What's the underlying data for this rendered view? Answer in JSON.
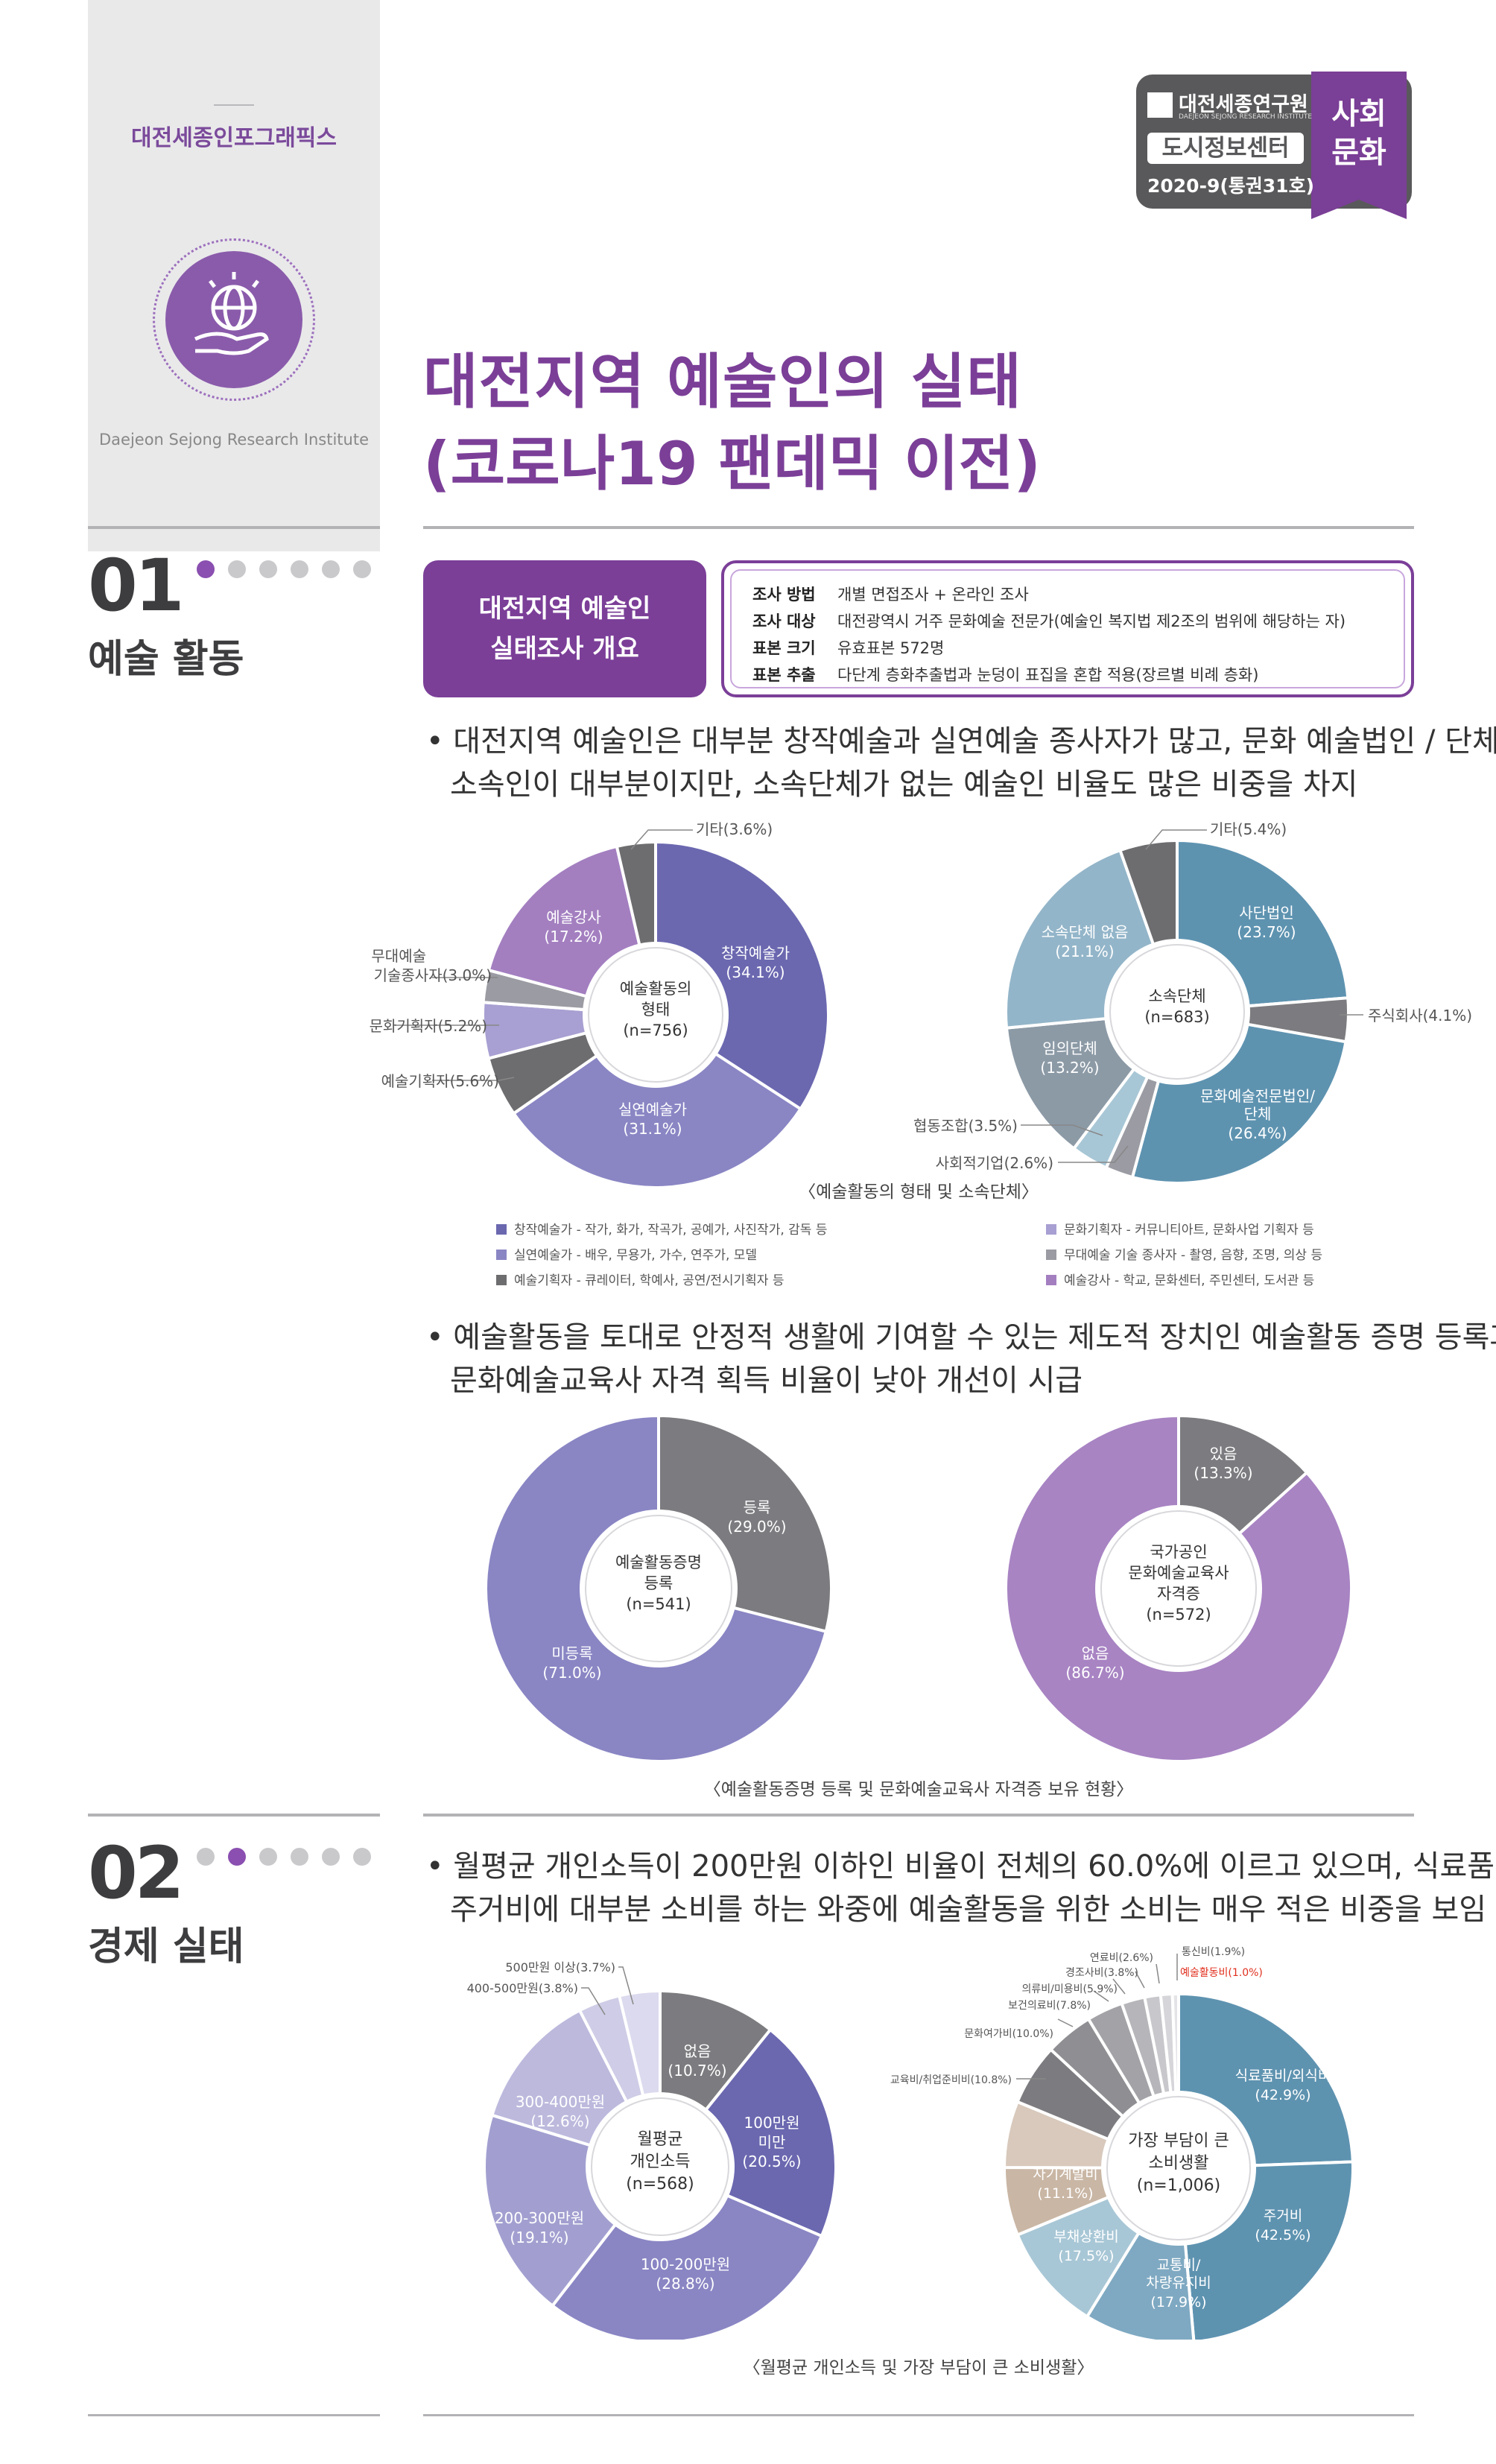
{
  "brand": {
    "series": "대전세종인포그래픽스",
    "institute_en": "Daejeon Sejong Research Institute"
  },
  "logo": {
    "org": "대전세종연구원",
    "org_en": "DAEJEON SEJONG RESEARCH INSTITUTE",
    "center": "도시정보센터",
    "issue": "2020-9(통권31호)",
    "category_line1": "사회",
    "category_line2": "문화"
  },
  "title": {
    "line1": "대전지역 예술인의 실태",
    "line2": "(코로나19 팬데믹 이전)"
  },
  "section1": {
    "num": "01",
    "name": "예술 활동",
    "overview_label_line1": "대전지역 예술인",
    "overview_label_line2": "실태조사 개요",
    "overview": [
      {
        "key": "조사 방법",
        "value": "개별 면접조사 + 온라인 조사"
      },
      {
        "key": "조사 대상",
        "value": "대전광역시 거주 문화예술 전문가(예술인 복지법 제2조의 범위에 해당하는 자)"
      },
      {
        "key": "표본 크기",
        "value": "유효표본 572명"
      },
      {
        "key": "표본 추출",
        "value": "다단계 층화추출법과 눈덩이 표집을 혼합 적용(장르별 비례 층화)"
      }
    ],
    "bullet1_line1": "• 대전지역 예술인은 대부분 창작예술과 실연예술 종사자가 많고, 문화 예술법인 / 단체",
    "bullet1_line2": "소속인이 대부분이지만, 소속단체가 없는 예술인 비율도 많은 비중을 차지",
    "caption1": "〈예술활동의 형태 및 소속단체〉",
    "legend": [
      {
        "text": "창작예술가 - 작가, 화가, 작곡가, 공예가, 사진작가, 감독 등",
        "color": "#6b68b0"
      },
      {
        "text": "실연예술가 - 배우, 무용가, 가수, 연주가, 모델",
        "color": "#8a86c4"
      },
      {
        "text": "예술기획자 - 큐레이터, 학예사, 공연/전시기획자 등",
        "color": "#6d6d70"
      },
      {
        "text": "문화기획자 - 커뮤니티아트, 문화사업 기획자 등",
        "color": "#a89fd2"
      },
      {
        "text": "무대예술 기술 종사자 - 촬영, 음향, 조명, 의상 등",
        "color": "#9b9ba3"
      },
      {
        "text": "예술강사 - 학교, 문화센터, 주민센터, 도서관 등",
        "color": "#a37fc0"
      }
    ],
    "bullet2_line1": "• 예술활동을 토대로 안정적 생활에 기여할 수 있는 제도적 장치인 예술활동 증명 등록과",
    "bullet2_line2": "문화예술교육사 자격 획득 비율이 낮아 개선이 시급",
    "caption2": "〈예술활동증명 등록 및 문화예술교육사 자격증 보유 현황〉"
  },
  "section2": {
    "num": "02",
    "name": "경제 실태",
    "bullet_line1": "• 월평균 개인소득이 200만원 이하인 비율이 전체의 60.0%에 이르고 있으며, 식료품비와",
    "bullet_line2": "주거비에 대부분 소비를 하는 와중에 예술활동을 위한 소비는 매우 적은 비중을 보임",
    "caption": "〈월평균 개인소득 및 가장 부담이 큰 소비생활〉"
  },
  "chart_data": [
    {
      "type": "pie",
      "center_lines": [
        "예술활동의",
        "형태",
        "(n=756)"
      ],
      "slices": [
        {
          "label": "창작예술가",
          "value": 34.1,
          "color": "#6b68b0"
        },
        {
          "label": "실연예술가",
          "value": 31.1,
          "color": "#8a86c4"
        },
        {
          "label": "예술기획자",
          "value": 5.6,
          "color": "#6d6d70"
        },
        {
          "label": "문화기획자",
          "value": 5.2,
          "color": "#a89fd2"
        },
        {
          "label": "무대예술 기술종사자",
          "value": 3.0,
          "color": "#9b9ba3"
        },
        {
          "label": "예술강사",
          "value": 17.2,
          "color": "#a37fc0"
        },
        {
          "label": "기타",
          "value": 3.6,
          "color": "#6d6d70"
        }
      ]
    },
    {
      "type": "pie",
      "center_lines": [
        "소속단체",
        "(n=683)"
      ],
      "slices": [
        {
          "label": "사단법인",
          "value": 23.7,
          "color": "#5e93b0"
        },
        {
          "label": "주식회사",
          "value": 4.1,
          "color": "#7c7c80"
        },
        {
          "label": "문화예술전문법인/단체",
          "value": 26.4,
          "color": "#5e93b0"
        },
        {
          "label": "사회적기업",
          "value": 2.6,
          "color": "#9b9ba3"
        },
        {
          "label": "협동조합",
          "value": 3.5,
          "color": "#a8c7d6"
        },
        {
          "label": "임의단체",
          "value": 13.2,
          "color": "#8c9aa6"
        },
        {
          "label": "소속단체 없음",
          "value": 21.1,
          "color": "#93b5c9"
        },
        {
          "label": "기타",
          "value": 5.4,
          "color": "#6d6d70"
        }
      ]
    },
    {
      "type": "pie",
      "center_lines": [
        "예술활동증명",
        "등록",
        "(n=541)"
      ],
      "slices": [
        {
          "label": "등록",
          "value": 29.0,
          "color": "#7c7c80"
        },
        {
          "label": "미등록",
          "value": 71.0,
          "color": "#8a86c4"
        }
      ]
    },
    {
      "type": "pie",
      "center_lines": [
        "국가공인",
        "문화예술교육사",
        "자격증",
        "(n=572)"
      ],
      "slices": [
        {
          "label": "있음",
          "value": 13.3,
          "color": "#7c7c80"
        },
        {
          "label": "없음",
          "value": 86.7,
          "color": "#a884c3"
        }
      ]
    },
    {
      "type": "pie",
      "center_lines": [
        "월평균",
        "개인소득",
        "(n=568)"
      ],
      "slices": [
        {
          "label": "없음",
          "value": 10.7,
          "color": "#7c7c80"
        },
        {
          "label": "100만원 미만",
          "value": 20.5,
          "color": "#6b68b0"
        },
        {
          "label": "100-200만원",
          "value": 28.8,
          "color": "#8a86c4"
        },
        {
          "label": "200-300만원",
          "value": 19.1,
          "color": "#a29fd0"
        },
        {
          "label": "300-400만원",
          "value": 12.6,
          "color": "#bcb9dd"
        },
        {
          "label": "400-500만원",
          "value": 3.8,
          "color": "#cecce6"
        },
        {
          "label": "500만원 이상",
          "value": 3.7,
          "color": "#dcdaee"
        }
      ]
    },
    {
      "type": "pie",
      "center_lines": [
        "가장 부담이 큰",
        "소비생활",
        "(n=1,006)"
      ],
      "slices": [
        {
          "label": "식료품비/외식비",
          "value": 42.9,
          "color": "#5e93b0"
        },
        {
          "label": "주거비",
          "value": 42.5,
          "color": "#5e93b0"
        },
        {
          "label": "교통비/차량유지비",
          "value": 17.9,
          "color": "#7fa9c2"
        },
        {
          "label": "부채상환비",
          "value": 17.5,
          "color": "#a8c7d6"
        },
        {
          "label": "자기계발비",
          "value": 11.1,
          "color": "#c9b6a4"
        },
        {
          "label": "교육비/취업준비비",
          "value": 10.8,
          "color": "#d8c9bc"
        },
        {
          "label": "문화여가비",
          "value": 10.0,
          "color": "#7c7c80"
        },
        {
          "label": "보건의료비",
          "value": 7.8,
          "color": "#8f8f93"
        },
        {
          "label": "의류비/미용비",
          "value": 5.9,
          "color": "#a3a3a7"
        },
        {
          "label": "경조사비",
          "value": 3.8,
          "color": "#b6b6ba"
        },
        {
          "label": "연료비",
          "value": 2.6,
          "color": "#c8c8cc"
        },
        {
          "label": "통신비",
          "value": 1.9,
          "color": "#d6d6da"
        },
        {
          "label": "예술활동비",
          "value": 1.0,
          "color": "#e4e4e7"
        }
      ]
    }
  ],
  "labels": {
    "c1": {
      "s0": "창작예술가",
      "s0v": "(34.1%)",
      "s1": "실연예술가",
      "s1v": "(31.1%)",
      "s2": "예술기획자(5.6%)",
      "s3": "문화기획자(5.2%)",
      "s4a": "무대예술",
      "s4b": "기술종사자(3.0%)",
      "s5": "예술강사",
      "s5v": "(17.2%)",
      "s6": "기타(3.6%)"
    },
    "c2": {
      "s0": "사단법인",
      "s0v": "(23.7%)",
      "s1": "주식회사(4.1%)",
      "s2a": "문화예술전문법인/",
      "s2b": "단체",
      "s2v": "(26.4%)",
      "s3": "사회적기업(2.6%)",
      "s4": "협동조합(3.5%)",
      "s5": "임의단체",
      "s5v": "(13.2%)",
      "s6": "소속단체 없음",
      "s6v": "(21.1%)",
      "s7": "기타(5.4%)"
    },
    "c3": {
      "s0": "등록",
      "s0v": "(29.0%)",
      "s1": "미등록",
      "s1v": "(71.0%)"
    },
    "c4": {
      "s0": "있음",
      "s0v": "(13.3%)",
      "s1": "없음",
      "s1v": "(86.7%)"
    },
    "c5": {
      "s0": "없음",
      "s0v": "(10.7%)",
      "s1a": "100만원",
      "s1b": "미만",
      "s1v": "(20.5%)",
      "s2": "100-200만원",
      "s2v": "(28.8%)",
      "s3": "200-300만원",
      "s3v": "(19.1%)",
      "s4": "300-400만원",
      "s4v": "(12.6%)",
      "s5": "400-500만원(3.8%)",
      "s6": "500만원 이상(3.7%)"
    },
    "c6": {
      "s0": "식료품비/외식비",
      "s0v": "(42.9%)",
      "s1": "주거비",
      "s1v": "(42.5%)",
      "s2a": "교통비/",
      "s2b": "차량유지비",
      "s2v": "(17.9%)",
      "s3": "부채상환비",
      "s3v": "(17.5%)",
      "s4": "자기계발비",
      "s4v": "(11.1%)",
      "s5": "교육비/취업준비비(10.8%)",
      "s6": "문화여가비(10.0%)",
      "s7": "보건의료비(7.8%)",
      "s8": "의류비/미용비(5.9%)",
      "s9": "경조사비(3.8%)",
      "s10": "연료비(2.6%)",
      "s11": "통신비(1.9%)",
      "s12": "예술활동비(1.0%)"
    }
  }
}
